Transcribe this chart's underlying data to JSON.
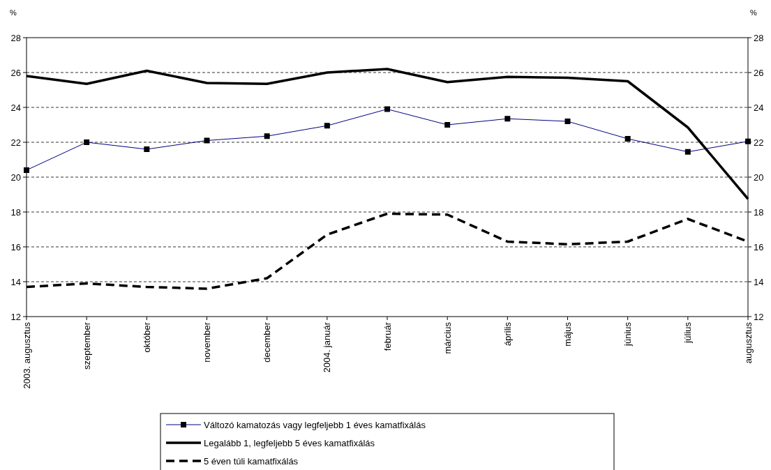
{
  "chart_data": {
    "type": "line",
    "ylabel": "%",
    "y2label": "%",
    "categories": [
      "2003. augusztus",
      "szeptember",
      "október",
      "november",
      "december",
      "2004. január",
      "február",
      "március",
      "április",
      "május",
      "június",
      "július",
      "augusztus"
    ],
    "series": [
      {
        "name": "Változó kamatozás vagy legfeljebb 1 éves kamatfixálás",
        "color": "#000080",
        "marker": "square",
        "line_style": "solid",
        "values": [
          20.4,
          22.0,
          21.6,
          22.1,
          22.35,
          22.95,
          23.9,
          23.0,
          23.35,
          23.2,
          22.2,
          21.45,
          22.05
        ]
      },
      {
        "name": "Legalább 1, legfeljebb 5 éves kamatfixálás",
        "color": "#000000",
        "marker": "none",
        "line_style": "solid",
        "values": [
          25.8,
          25.35,
          26.1,
          25.4,
          25.35,
          26.0,
          26.2,
          25.45,
          25.75,
          25.7,
          25.5,
          22.85,
          18.75
        ]
      },
      {
        "name": "5 éven túli kamatfixálás",
        "color": "#000000",
        "marker": "none",
        "line_style": "dashed",
        "values": [
          13.7,
          13.9,
          13.7,
          13.6,
          14.2,
          16.7,
          17.9,
          17.85,
          16.3,
          16.15,
          16.3,
          17.6,
          16.3
        ]
      }
    ],
    "ylim": [
      12,
      28
    ],
    "yticks": [
      12,
      14,
      16,
      18,
      20,
      22,
      24,
      26,
      28
    ],
    "y2lim": [
      12,
      28
    ],
    "y2ticks": [
      12,
      14,
      16,
      18,
      20,
      22,
      24,
      26,
      28
    ],
    "grid": "y",
    "legend": "bottom"
  }
}
